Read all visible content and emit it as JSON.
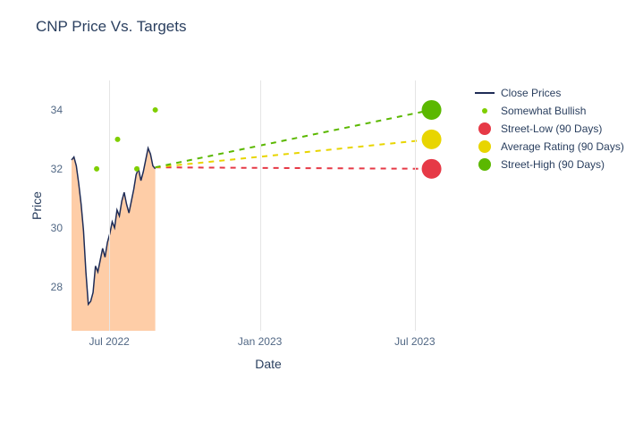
{
  "title": "CNP Price Vs. Targets",
  "title_fontsize": 17,
  "title_color": "#2a3f5f",
  "xlabel": "Date",
  "ylabel": "Price",
  "label_fontsize": 14,
  "label_color": "#2a3f5f",
  "background_color": "#ffffff",
  "grid_color": "#e5e5e5",
  "tick_color": "#506784",
  "ylim": [
    26.5,
    35
  ],
  "yticks": [
    28,
    30,
    32,
    34
  ],
  "x_range_days": 470,
  "xticks": [
    {
      "label": "Jul 2022",
      "day": 45
    },
    {
      "label": "Jan 2023",
      "day": 225
    },
    {
      "label": "Jul 2023",
      "day": 410
    }
  ],
  "area_fill_color": "#fdb881",
  "area_fill_opacity": 0.7,
  "close_line_color": "#1f2c56",
  "close_line_width": 1.5,
  "close_prices": {
    "start_day": 0,
    "end_day": 100,
    "values": [
      32.3,
      32.4,
      32.1,
      31.5,
      30.8,
      29.9,
      28.5,
      27.4,
      27.5,
      27.8,
      28.7,
      28.5,
      28.9,
      29.3,
      29.0,
      29.5,
      29.8,
      30.2,
      30.0,
      30.6,
      30.4,
      30.9,
      31.2,
      30.8,
      30.5,
      30.9,
      31.3,
      31.8,
      32.0,
      31.6,
      31.9,
      32.3,
      32.7,
      32.5,
      32.1,
      32.0
    ]
  },
  "bullish_points": {
    "color": "#7fce00",
    "radius": 3,
    "points": [
      {
        "day": 30,
        "price": 32.0
      },
      {
        "day": 55,
        "price": 33.0
      },
      {
        "day": 78,
        "price": 32.0
      },
      {
        "day": 100,
        "price": 34.0
      }
    ]
  },
  "projection_start": {
    "day": 100,
    "price": 32.05
  },
  "projection_end_day": 430,
  "targets": [
    {
      "name": "street-low",
      "price": 32.0,
      "line_color": "#e63946",
      "dot_color": "#e63946",
      "dash": "6,6"
    },
    {
      "name": "average-rating",
      "price": 33.0,
      "line_color": "#e8d500",
      "dot_color": "#e8d500",
      "dash": "6,6"
    },
    {
      "name": "street-high",
      "price": 34.0,
      "line_color": "#5bb800",
      "dot_color": "#5bb800",
      "dash": "6,6"
    }
  ],
  "target_dot_radius": 11,
  "legend": [
    {
      "label": "Close Prices",
      "type": "line",
      "color": "#1f2c56"
    },
    {
      "label": "Somewhat Bullish",
      "type": "dot",
      "color": "#7fce00",
      "size": 6
    },
    {
      "label": "Street-Low (90 Days)",
      "type": "dot",
      "color": "#e63946",
      "size": 14
    },
    {
      "label": "Average Rating (90 Days)",
      "type": "dot",
      "color": "#e8d500",
      "size": 14
    },
    {
      "label": "Street-High (90 Days)",
      "type": "dot",
      "color": "#5bb800",
      "size": 14
    }
  ]
}
